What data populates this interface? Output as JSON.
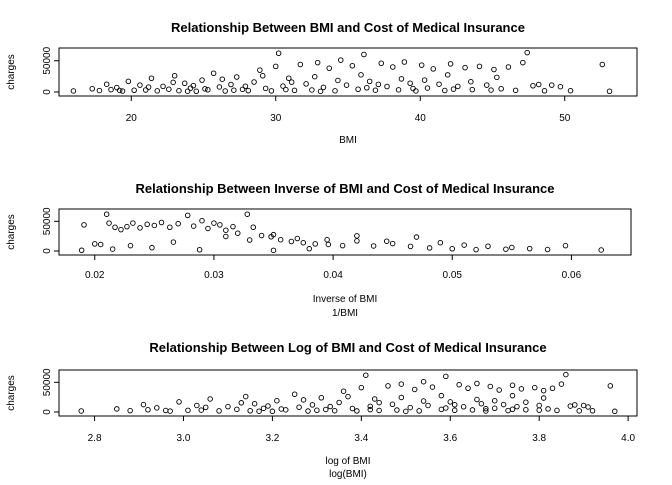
{
  "chart_data": [
    {
      "type": "scatter",
      "title": "Relationship Between BMI and Cost of Medical Insurance",
      "xlabel": "BMI",
      "sub": "",
      "ylabel": "charges",
      "xlim": [
        15,
        55
      ],
      "ylim": [
        0,
        64000
      ],
      "xticks": [
        20,
        30,
        40,
        50
      ],
      "xtick_labels": [
        "20",
        "30",
        "40",
        "50"
      ],
      "yticks": [
        0,
        50000
      ],
      "ytick_labels": [
        "0",
        "50000"
      ],
      "grid": false,
      "legend": "none",
      "points": [
        [
          16.0,
          1700
        ],
        [
          17.3,
          5200
        ],
        [
          17.8,
          2300
        ],
        [
          18.3,
          12500
        ],
        [
          18.6,
          3800
        ],
        [
          19.0,
          7000
        ],
        [
          19.4,
          1500
        ],
        [
          19.8,
          17000
        ],
        [
          20.2,
          2800
        ],
        [
          20.6,
          11000
        ],
        [
          21.0,
          3200
        ],
        [
          21.4,
          22000
        ],
        [
          21.8,
          1900
        ],
        [
          22.2,
          9000
        ],
        [
          22.6,
          4500
        ],
        [
          23.0,
          26000
        ],
        [
          23.3,
          2100
        ],
        [
          23.7,
          14000
        ],
        [
          24.1,
          6200
        ],
        [
          24.5,
          1200
        ],
        [
          24.9,
          19000
        ],
        [
          25.3,
          3600
        ],
        [
          25.7,
          30000
        ],
        [
          26.1,
          8100
        ],
        [
          26.5,
          1600
        ],
        [
          26.9,
          12000
        ],
        [
          27.3,
          24000
        ],
        [
          27.7,
          4300
        ],
        [
          28.1,
          2200
        ],
        [
          28.5,
          16000
        ],
        [
          28.9,
          35000
        ],
        [
          29.3,
          5900
        ],
        [
          29.7,
          1800
        ],
        [
          30.0,
          41000
        ],
        [
          30.2,
          62000
        ],
        [
          30.5,
          9500
        ],
        [
          30.9,
          22000
        ],
        [
          31.3,
          2600
        ],
        [
          31.7,
          44000
        ],
        [
          32.1,
          13000
        ],
        [
          32.5,
          3300
        ],
        [
          32.9,
          47000
        ],
        [
          33.3,
          7400
        ],
        [
          33.7,
          38000
        ],
        [
          34.1,
          1900
        ],
        [
          34.5,
          51000
        ],
        [
          34.9,
          11000
        ],
        [
          35.3,
          42000
        ],
        [
          35.7,
          4400
        ],
        [
          36.1,
          60000
        ],
        [
          36.5,
          17000
        ],
        [
          36.9,
          2900
        ],
        [
          37.3,
          46000
        ],
        [
          37.7,
          8800
        ],
        [
          38.1,
          40000
        ],
        [
          38.5,
          3500
        ],
        [
          38.9,
          48000
        ],
        [
          39.3,
          14000
        ],
        [
          39.7,
          1700
        ],
        [
          40.1,
          43000
        ],
        [
          40.5,
          6300
        ],
        [
          40.9,
          37000
        ],
        [
          41.3,
          12500
        ],
        [
          41.7,
          2400
        ],
        [
          42.1,
          45000
        ],
        [
          42.6,
          9000
        ],
        [
          43.1,
          39000
        ],
        [
          43.6,
          3800
        ],
        [
          44.1,
          41000
        ],
        [
          44.6,
          11000
        ],
        [
          45.1,
          36000
        ],
        [
          45.6,
          5200
        ],
        [
          46.1,
          40000
        ],
        [
          46.6,
          2700
        ],
        [
          47.1,
          47000
        ],
        [
          47.4,
          63000
        ],
        [
          47.8,
          10000
        ],
        [
          48.2,
          12000
        ],
        [
          48.6,
          2000
        ],
        [
          49.1,
          11000
        ],
        [
          49.7,
          8500
        ],
        [
          50.4,
          2100
        ],
        [
          52.6,
          44000
        ],
        [
          53.1,
          1200
        ],
        [
          21.2,
          7800
        ],
        [
          22.9,
          15500
        ],
        [
          24.3,
          10200
        ],
        [
          26.3,
          20500
        ],
        [
          27.9,
          9200
        ],
        [
          29.1,
          26000
        ],
        [
          31.1,
          15800
        ],
        [
          32.7,
          24500
        ],
        [
          34.3,
          18500
        ],
        [
          35.9,
          27500
        ],
        [
          37.1,
          12200
        ],
        [
          38.7,
          21000
        ],
        [
          40.3,
          19000
        ],
        [
          41.9,
          27500
        ],
        [
          43.5,
          16500
        ],
        [
          45.3,
          23500
        ],
        [
          19.2,
          2500
        ],
        [
          25.1,
          5100
        ],
        [
          30.7,
          3900
        ],
        [
          36.3,
          6800
        ],
        [
          42.3,
          4600
        ],
        [
          33.1,
          1100
        ],
        [
          27.1,
          2900
        ],
        [
          23.9,
          1300
        ],
        [
          39.5,
          5600
        ],
        [
          44.9,
          3100
        ]
      ]
    },
    {
      "type": "scatter",
      "title": "Relationship Between Inverse of BMI and Cost of Medical Insurance",
      "xlabel": "Inverse of BMI",
      "sub": "1/BMI",
      "ylabel": "charges",
      "xlim": [
        0.017,
        0.065
      ],
      "ylim": [
        0,
        64000
      ],
      "xticks": [
        0.02,
        0.03,
        0.04,
        0.05,
        0.06
      ],
      "xtick_labels": [
        "0.02",
        "0.03",
        "0.04",
        "0.05",
        "0.06"
      ],
      "yticks": [
        0,
        50000
      ],
      "ytick_labels": [
        "0",
        "50000"
      ],
      "grid": false,
      "legend": "none",
      "points": [
        [
          0.0189,
          1200
        ],
        [
          0.0191,
          44000
        ],
        [
          0.02,
          12000
        ],
        [
          0.0205,
          11000
        ],
        [
          0.021,
          62000
        ],
        [
          0.0212,
          47000
        ],
        [
          0.0217,
          40000
        ],
        [
          0.0222,
          36000
        ],
        [
          0.0227,
          41000
        ],
        [
          0.0232,
          47000
        ],
        [
          0.0238,
          39000
        ],
        [
          0.0244,
          45000
        ],
        [
          0.025,
          43000
        ],
        [
          0.0256,
          48000
        ],
        [
          0.0263,
          40000
        ],
        [
          0.027,
          46000
        ],
        [
          0.0278,
          60000
        ],
        [
          0.0283,
          42000
        ],
        [
          0.029,
          51000
        ],
        [
          0.0295,
          38000
        ],
        [
          0.03,
          47000
        ],
        [
          0.0305,
          44000
        ],
        [
          0.031,
          35000
        ],
        [
          0.0316,
          41000
        ],
        [
          0.032,
          30000
        ],
        [
          0.0328,
          62000
        ],
        [
          0.0333,
          40000
        ],
        [
          0.034,
          26000
        ],
        [
          0.0348,
          24000
        ],
        [
          0.0356,
          19000
        ],
        [
          0.0365,
          16000
        ],
        [
          0.0375,
          14000
        ],
        [
          0.0385,
          12000
        ],
        [
          0.0396,
          11000
        ],
        [
          0.0408,
          9000
        ],
        [
          0.042,
          17000
        ],
        [
          0.0434,
          8500
        ],
        [
          0.045,
          12500
        ],
        [
          0.0465,
          7800
        ],
        [
          0.0481,
          5200
        ],
        [
          0.05,
          3800
        ],
        [
          0.052,
          2300
        ],
        [
          0.055,
          6000
        ],
        [
          0.0565,
          4000
        ],
        [
          0.058,
          2500
        ],
        [
          0.0625,
          1700
        ],
        [
          0.0215,
          3200
        ],
        [
          0.023,
          9000
        ],
        [
          0.0248,
          5600
        ],
        [
          0.0266,
          15000
        ],
        [
          0.0288,
          2100
        ],
        [
          0.031,
          24500
        ],
        [
          0.033,
          18500
        ],
        [
          0.035,
          27500
        ],
        [
          0.037,
          21000
        ],
        [
          0.0395,
          19000
        ],
        [
          0.042,
          25500
        ],
        [
          0.0445,
          16500
        ],
        [
          0.047,
          23500
        ],
        [
          0.049,
          14000
        ],
        [
          0.051,
          10000
        ],
        [
          0.053,
          8000
        ],
        [
          0.0545,
          3000
        ],
        [
          0.0595,
          9000
        ],
        [
          0.035,
          1100
        ],
        [
          0.038,
          3900
        ]
      ]
    },
    {
      "type": "scatter",
      "title": "Relationship Between Log of BMI and Cost of Medical Insurance",
      "xlabel": "log of BMI",
      "sub": "log(BMI)",
      "ylabel": "charges",
      "xlim": [
        2.72,
        4.02
      ],
      "ylim": [
        0,
        64000
      ],
      "xticks": [
        2.8,
        3.0,
        3.2,
        3.4,
        3.6,
        3.8,
        4.0
      ],
      "xtick_labels": [
        "2.8",
        "3.0",
        "3.2",
        "3.4",
        "3.6",
        "3.8",
        "4.0"
      ],
      "yticks": [
        0,
        50000
      ],
      "ytick_labels": [
        "0",
        "50000"
      ],
      "grid": false,
      "legend": "none",
      "points": [
        [
          2.77,
          1700
        ],
        [
          2.85,
          5200
        ],
        [
          2.88,
          2300
        ],
        [
          2.91,
          12500
        ],
        [
          2.92,
          3800
        ],
        [
          2.94,
          7000
        ],
        [
          2.97,
          1500
        ],
        [
          2.99,
          17000
        ],
        [
          3.01,
          2800
        ],
        [
          3.03,
          11000
        ],
        [
          3.04,
          3200
        ],
        [
          3.06,
          22000
        ],
        [
          3.08,
          1900
        ],
        [
          3.1,
          9000
        ],
        [
          3.12,
          4500
        ],
        [
          3.14,
          26000
        ],
        [
          3.15,
          2100
        ],
        [
          3.16,
          14000
        ],
        [
          3.18,
          6200
        ],
        [
          3.2,
          1200
        ],
        [
          3.21,
          19000
        ],
        [
          3.23,
          3600
        ],
        [
          3.25,
          30000
        ],
        [
          3.26,
          8100
        ],
        [
          3.28,
          1600
        ],
        [
          3.29,
          12000
        ],
        [
          3.31,
          24000
        ],
        [
          3.32,
          4300
        ],
        [
          3.34,
          2200
        ],
        [
          3.35,
          16000
        ],
        [
          3.36,
          35000
        ],
        [
          3.38,
          5900
        ],
        [
          3.39,
          1800
        ],
        [
          3.4,
          41000
        ],
        [
          3.41,
          62000
        ],
        [
          3.42,
          9500
        ],
        [
          3.43,
          22000
        ],
        [
          3.44,
          2600
        ],
        [
          3.46,
          44000
        ],
        [
          3.47,
          13000
        ],
        [
          3.48,
          3300
        ],
        [
          3.49,
          47000
        ],
        [
          3.51,
          7400
        ],
        [
          3.52,
          38000
        ],
        [
          3.53,
          1900
        ],
        [
          3.54,
          51000
        ],
        [
          3.55,
          11000
        ],
        [
          3.56,
          42000
        ],
        [
          3.58,
          4400
        ],
        [
          3.59,
          60000
        ],
        [
          3.6,
          17000
        ],
        [
          3.61,
          2900
        ],
        [
          3.62,
          46000
        ],
        [
          3.63,
          8800
        ],
        [
          3.64,
          40000
        ],
        [
          3.65,
          3500
        ],
        [
          3.66,
          48000
        ],
        [
          3.67,
          14000
        ],
        [
          3.68,
          1700
        ],
        [
          3.69,
          43000
        ],
        [
          3.7,
          6300
        ],
        [
          3.71,
          37000
        ],
        [
          3.72,
          12500
        ],
        [
          3.73,
          2400
        ],
        [
          3.74,
          45000
        ],
        [
          3.75,
          9000
        ],
        [
          3.76,
          39000
        ],
        [
          3.77,
          3800
        ],
        [
          3.79,
          41000
        ],
        [
          3.8,
          11000
        ],
        [
          3.81,
          36000
        ],
        [
          3.82,
          5200
        ],
        [
          3.83,
          40000
        ],
        [
          3.84,
          2700
        ],
        [
          3.85,
          47000
        ],
        [
          3.86,
          63000
        ],
        [
          3.87,
          10000
        ],
        [
          3.88,
          12000
        ],
        [
          3.89,
          2000
        ],
        [
          3.9,
          11000
        ],
        [
          3.91,
          8500
        ],
        [
          3.92,
          2100
        ],
        [
          3.96,
          44000
        ],
        [
          3.97,
          1200
        ],
        [
          3.05,
          7800
        ],
        [
          3.13,
          15500
        ],
        [
          3.19,
          10200
        ],
        [
          3.27,
          20500
        ],
        [
          3.33,
          9200
        ],
        [
          3.37,
          26000
        ],
        [
          3.44,
          15800
        ],
        [
          3.49,
          24500
        ],
        [
          3.54,
          18500
        ],
        [
          3.58,
          27500
        ],
        [
          3.61,
          12200
        ],
        [
          3.66,
          21000
        ],
        [
          3.7,
          19000
        ],
        [
          3.74,
          27500
        ],
        [
          3.77,
          16500
        ],
        [
          3.81,
          23500
        ],
        [
          2.96,
          2500
        ],
        [
          3.22,
          5100
        ],
        [
          3.42,
          3900
        ],
        [
          3.59,
          6800
        ],
        [
          3.74,
          4600
        ],
        [
          3.5,
          1100
        ],
        [
          3.3,
          2900
        ],
        [
          3.17,
          1300
        ],
        [
          3.68,
          5600
        ],
        [
          3.8,
          3100
        ]
      ]
    }
  ]
}
